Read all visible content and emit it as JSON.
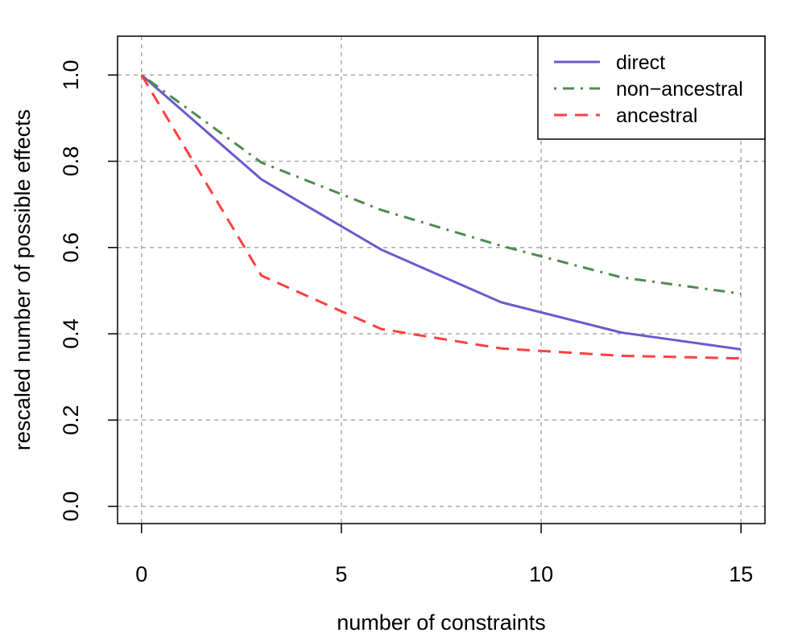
{
  "chart_data": {
    "type": "line",
    "xlabel": "number of constraints",
    "ylabel": "rescaled number of possible effects",
    "xlim": [
      -0.6,
      15.6
    ],
    "ylim": [
      -0.04,
      1.09
    ],
    "x_ticks": [
      "0",
      "5",
      "10",
      "15"
    ],
    "y_ticks": [
      "0.0",
      "0.2",
      "0.4",
      "0.6",
      "0.8",
      "1.0"
    ],
    "grid": true,
    "legend_position": "top-right",
    "x": [
      0,
      3,
      6,
      9,
      12,
      15
    ],
    "series": [
      {
        "name": "direct",
        "color": "#6a5acd",
        "dash": "solid",
        "values": [
          1.0,
          0.758,
          0.595,
          0.473,
          0.403,
          0.364
        ]
      },
      {
        "name": "non−ancestral",
        "color": "#4f8a4f",
        "dash": "dotdash",
        "values": [
          1.0,
          0.797,
          0.687,
          0.604,
          0.531,
          0.493
        ]
      },
      {
        "name": "ancestral",
        "color": "#ff4040",
        "dash": "dashed",
        "values": [
          1.0,
          0.535,
          0.411,
          0.366,
          0.349,
          0.343
        ]
      }
    ]
  }
}
